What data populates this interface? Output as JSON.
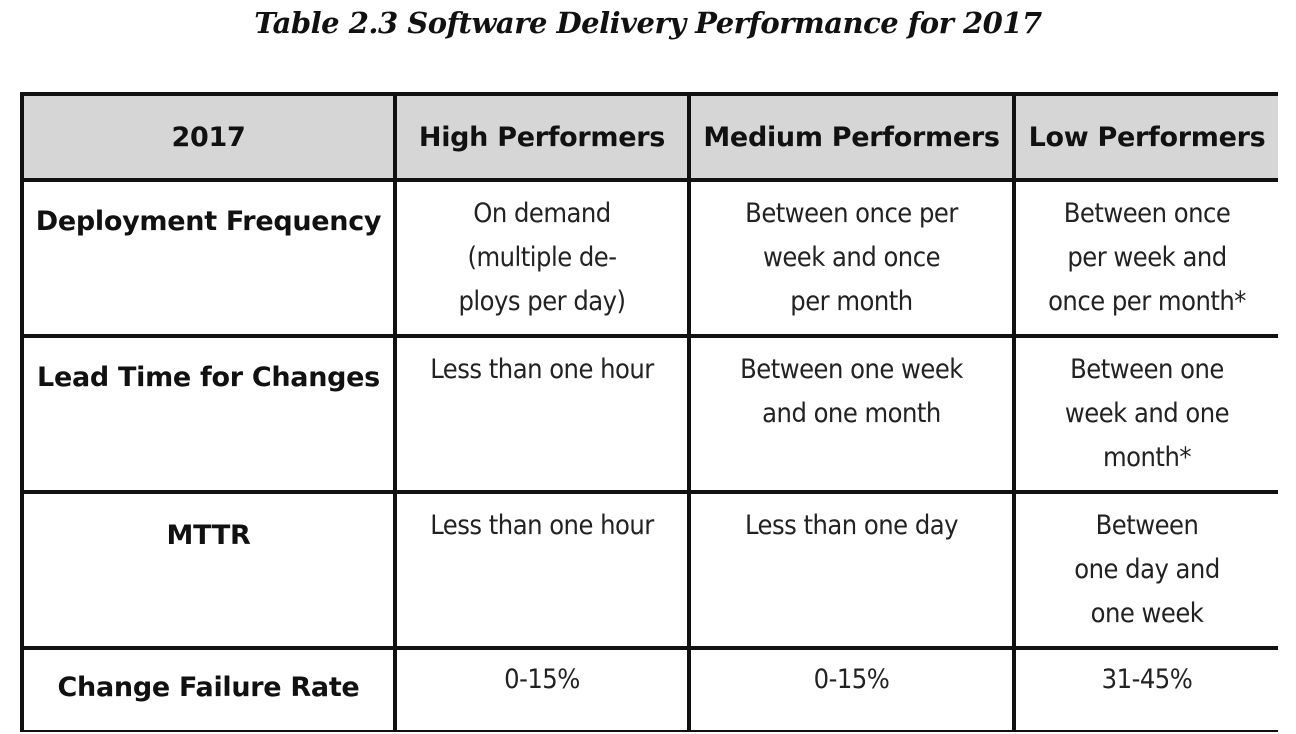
{
  "caption": "Table 2.3 Software Delivery Performance for 2017",
  "table": {
    "headers": [
      "2017",
      "High Performers",
      "Medium Performers",
      "Low Performers"
    ],
    "rows": [
      {
        "label": "Deployment Frequency",
        "cells": [
          [
            "On demand",
            "(multiple de-",
            "ploys per day)"
          ],
          [
            "Between once per",
            "week and once",
            "per month"
          ],
          [
            "Between once",
            "per week and",
            "once per month*"
          ]
        ]
      },
      {
        "label": "Lead Time for Changes",
        "cells": [
          [
            "Less than one hour"
          ],
          [
            "Between one week",
            "and one month"
          ],
          [
            "Between one",
            "week and one",
            "month*"
          ]
        ]
      },
      {
        "label": "MTTR",
        "cells": [
          [
            "Less than one hour"
          ],
          [
            "Less than one day"
          ],
          [
            "Between",
            "one day and",
            "one week"
          ]
        ]
      },
      {
        "label": "Change Failure Rate",
        "cells": [
          [
            "0-15%"
          ],
          [
            "0-15%"
          ],
          [
            "31-45%"
          ]
        ]
      }
    ]
  }
}
